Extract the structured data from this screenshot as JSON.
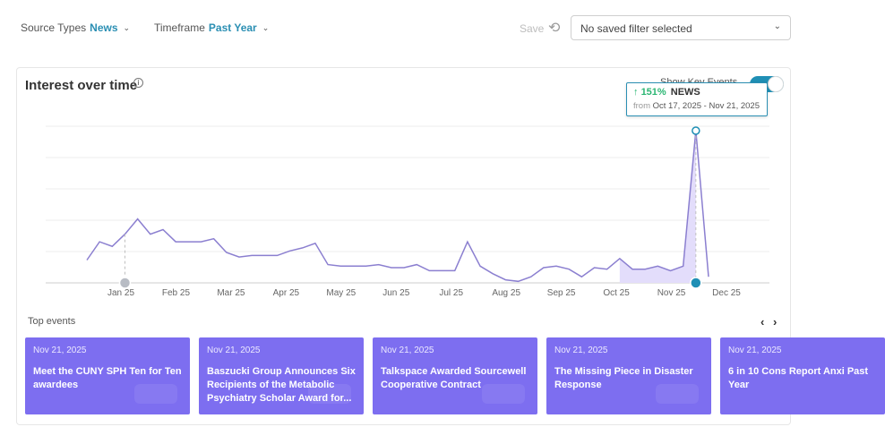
{
  "filters": {
    "source_types_label": "Source Types",
    "source_types_value": "News",
    "timeframe_label": "Timeframe",
    "timeframe_value": "Past Year"
  },
  "save_label": "Save",
  "saved_filter_select": "No saved filter selected",
  "panel": {
    "title": "Interest over time",
    "key_events_label": "Show Key Events",
    "key_events_on": true
  },
  "tooltip": {
    "change": "151%",
    "type": "NEWS",
    "from_label": "from",
    "range": "Oct 17, 2025 - Nov 21, 2025"
  },
  "chart_data": {
    "type": "line",
    "x_tick_labels": [
      "Jan 25",
      "Feb 25",
      "Mar 25",
      "Apr 25",
      "May 25",
      "Jun 25",
      "Jul 25",
      "Aug 25",
      "Sep 25",
      "Oct 25",
      "Nov 25",
      "Dec 25"
    ],
    "y_gridlines": 6,
    "ylim": [
      0,
      100
    ],
    "series": [
      {
        "values": [
          15,
          27,
          24,
          32,
          42,
          32,
          35,
          27,
          27,
          27,
          29,
          20,
          17,
          18,
          18,
          18,
          21,
          23,
          26,
          12,
          11,
          11,
          11,
          12,
          10,
          10,
          12,
          8,
          8,
          8,
          27,
          11,
          6,
          2,
          1,
          4,
          10,
          11,
          9,
          4,
          10,
          9,
          16,
          9,
          9,
          11,
          8,
          11,
          100,
          4
        ],
        "highlight_range_start_index": 42,
        "peak_index": 48,
        "peak_value": 100
      }
    ],
    "key_event_markers": [
      {
        "label": "Jan 25",
        "index": 3
      },
      {
        "label": "Nov 25",
        "index": 48
      }
    ]
  },
  "top_events_label": "Top events",
  "nav": {
    "prev": "‹",
    "next": "›"
  },
  "events": [
    {
      "date": "Nov 21, 2025",
      "title": "Meet the CUNY SPH Ten for Ten awardees"
    },
    {
      "date": "Nov 21, 2025",
      "title": "Baszucki Group Announces Six Recipients of the Metabolic Psychiatry Scholar Award for..."
    },
    {
      "date": "Nov 21, 2025",
      "title": "Talkspace Awarded Sourcewell Cooperative Contract"
    },
    {
      "date": "Nov 21, 2025",
      "title": "The Missing Piece in Disaster Response"
    },
    {
      "date": "Nov 21, 2025",
      "title": "6 in 10 Cons Report Anxi Past Year"
    }
  ],
  "colors": {
    "accent": "#2b8fb3",
    "line": "#8b7fd0",
    "event_card": "#7d6ef0",
    "highlight_fill": "#e3ddfb",
    "positive": "#2bb673"
  },
  "icons": [
    "chevron-down-icon",
    "undo-icon",
    "info-icon",
    "arrow-up-icon",
    "bell-marker-icon",
    "chevron-left-icon",
    "chevron-right-icon"
  ]
}
